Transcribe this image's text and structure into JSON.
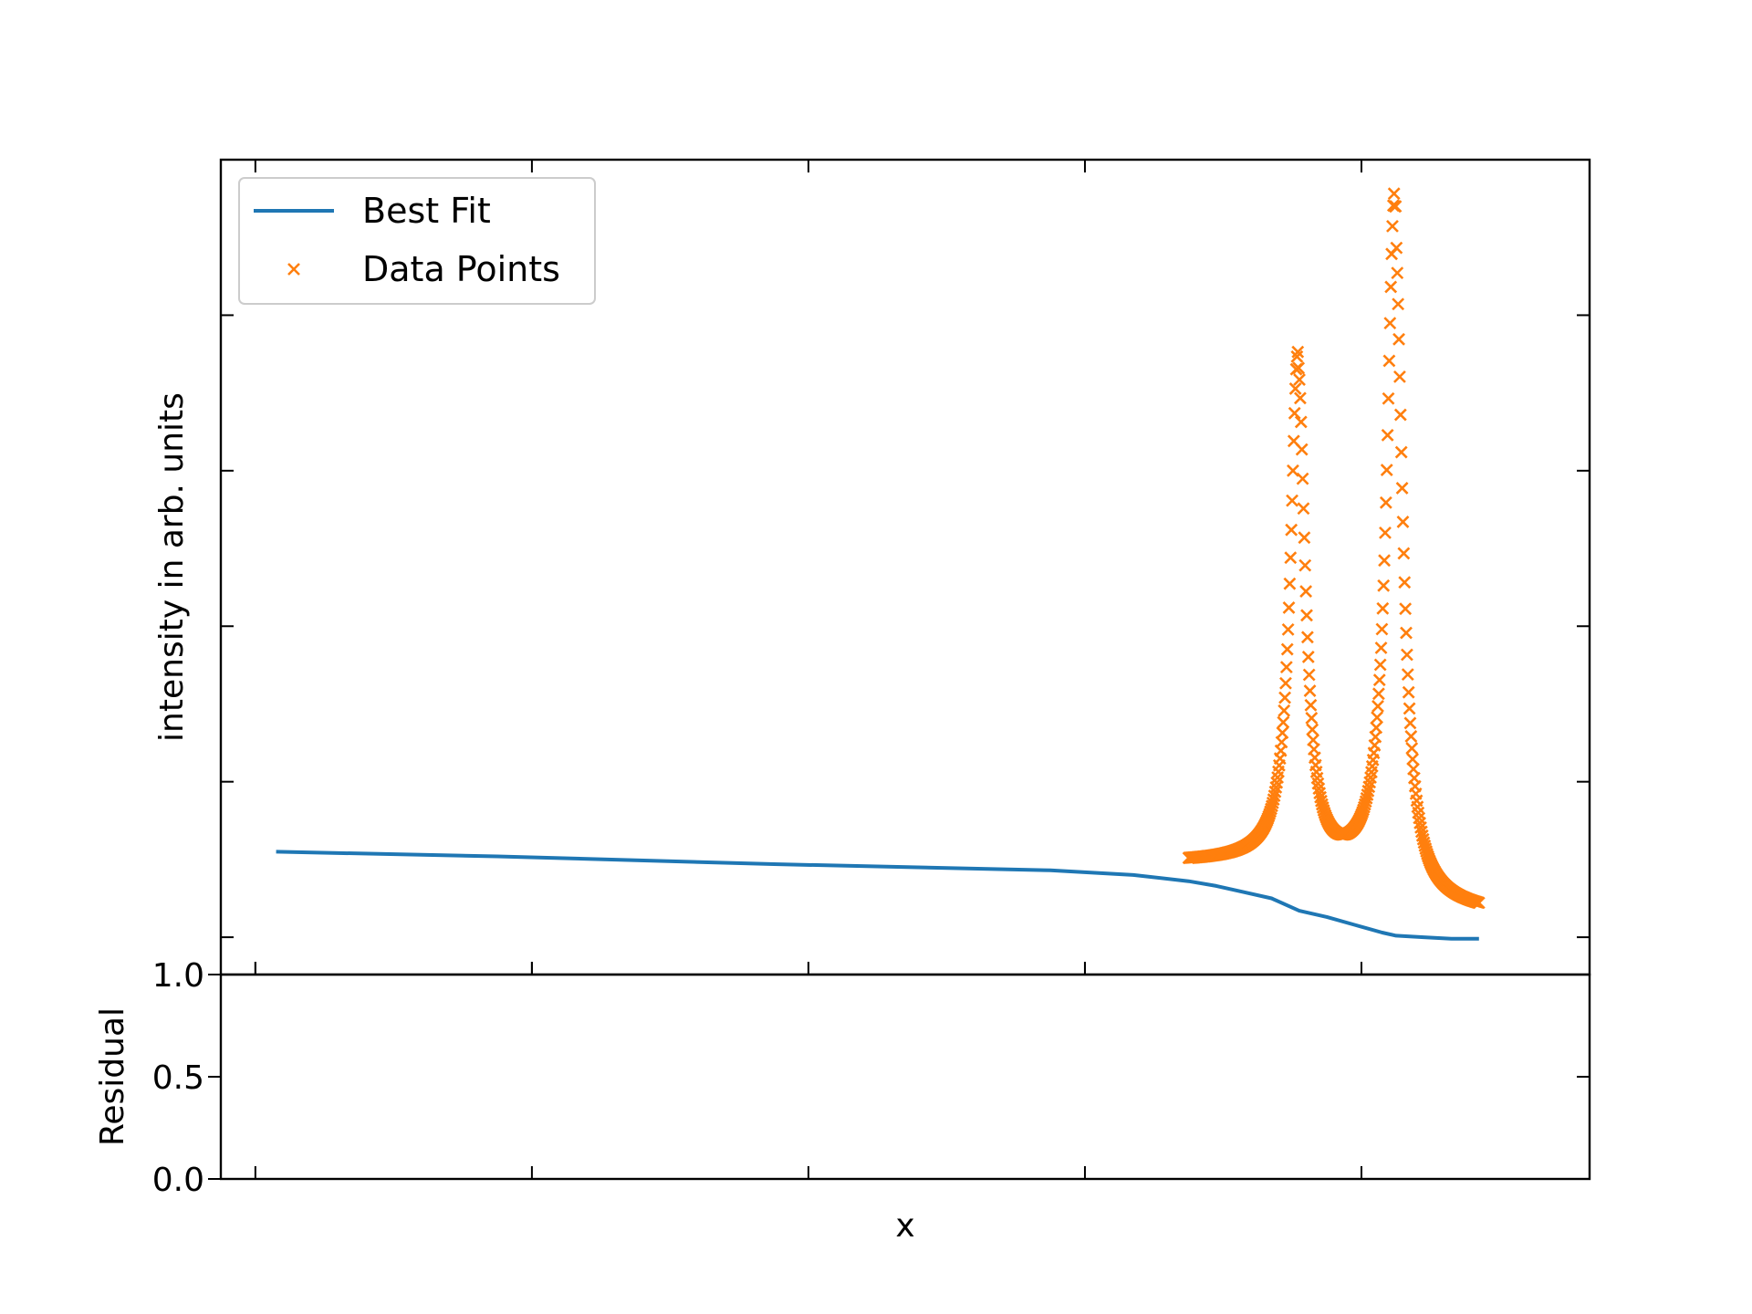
{
  "colors": {
    "fit": "#1f77b4",
    "data": "#ff7f0e",
    "axes": "#000000",
    "legend_border": "#cccccc"
  },
  "chart_data": [
    {
      "type": "line",
      "panel": "main",
      "title": "",
      "xlabel": "",
      "ylabel": "intensity in arb. units",
      "xlim": [
        0,
        4.95
      ],
      "ylim": [
        -0.24,
        5.0
      ],
      "y_ticks": [
        0,
        1,
        2,
        3,
        4
      ],
      "y_tick_labels_visible": false,
      "x_ticks": [
        0.125,
        1.125,
        2.125,
        3.125,
        4.125
      ],
      "ticks_direction": "in",
      "grid": false,
      "legend": {
        "position": "top-left",
        "entries": [
          "Best Fit",
          "Data Points"
        ]
      },
      "series": [
        {
          "name": "Best Fit",
          "kind": "line",
          "color": "#1f77b4",
          "x": [
            0.2,
            1.0,
            2.0,
            3.0,
            3.3,
            3.5,
            3.6,
            3.7,
            3.8,
            3.9,
            4.0,
            4.1,
            4.2,
            4.25,
            4.35,
            4.45,
            4.55
          ],
          "y": [
            0.55,
            0.52,
            0.47,
            0.43,
            0.4,
            0.36,
            0.33,
            0.29,
            0.25,
            0.17,
            0.13,
            0.08,
            0.03,
            0.01,
            0.0,
            -0.01,
            -0.01
          ]
        },
        {
          "name": "Data Points",
          "kind": "scatter",
          "marker": "x",
          "color": "#ff7f0e",
          "x_range": [
            3.5,
            4.55
          ],
          "peaks": [
            {
              "x": 3.895,
              "height": 3.45
            },
            {
              "x": 4.245,
              "height": 4.7
            }
          ],
          "baseline_left": 0.48,
          "valley_min": 0.42,
          "baseline_right": 0.16
        }
      ]
    },
    {
      "type": "line",
      "panel": "residual",
      "title": "",
      "xlabel": "x",
      "ylabel": "Residual",
      "xlim": [
        0,
        4.95
      ],
      "ylim": [
        0.0,
        1.0
      ],
      "y_ticks": [
        0.0,
        0.5,
        1.0
      ],
      "y_tick_labels": [
        "0.0",
        "0.5",
        "1.0"
      ],
      "x_ticks": [
        0.125,
        1.125,
        2.125,
        3.125,
        4.125
      ],
      "x_tick_labels_visible": false,
      "ticks_direction": "in",
      "grid": false,
      "series": []
    }
  ]
}
